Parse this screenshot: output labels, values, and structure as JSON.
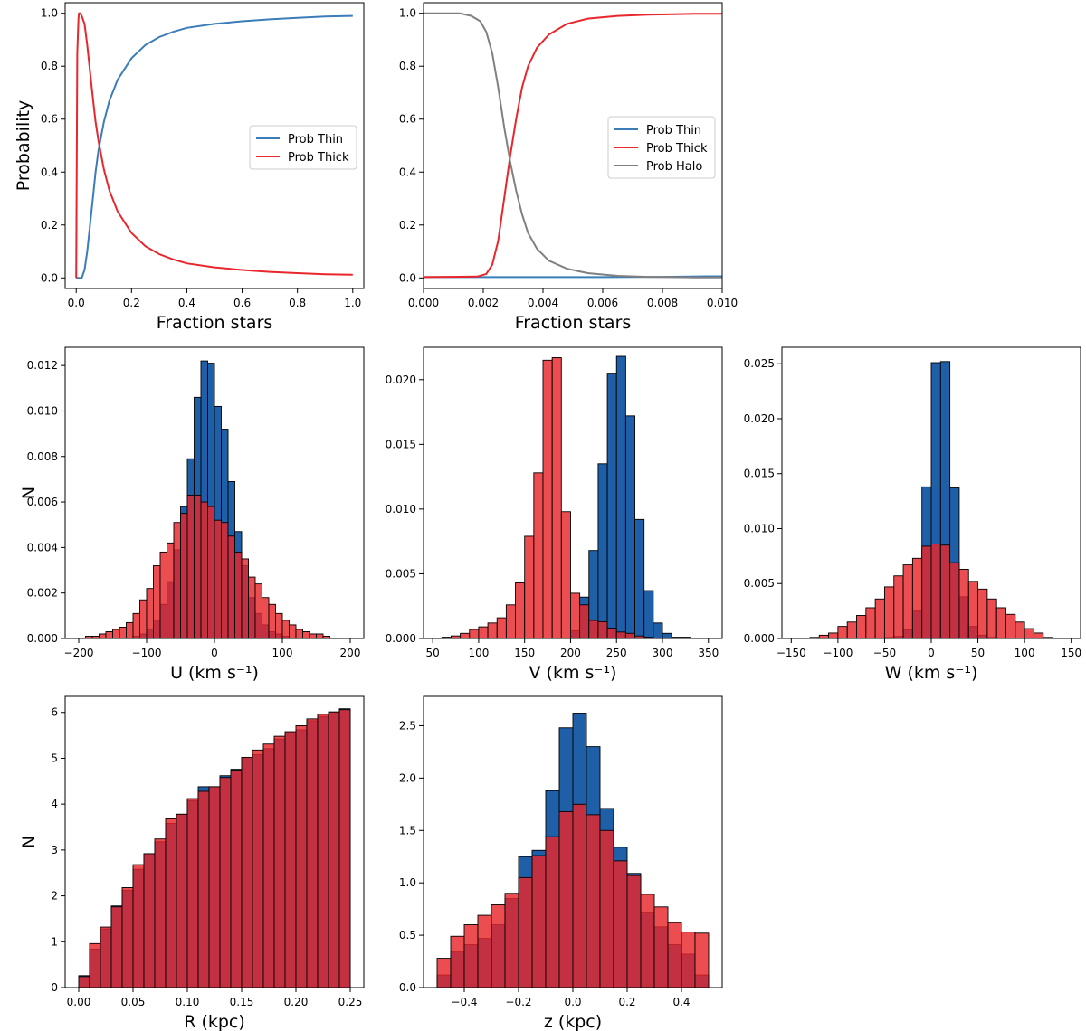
{
  "colors": {
    "thin": "#1f5fa8",
    "thick": "#e8262b",
    "halo": "#808080",
    "overlap": "#b0283a",
    "thinLine": "#3a7db8",
    "thickLine": "#e8262b"
  },
  "chart_data": [
    {
      "id": "p1",
      "type": "line",
      "xlabel": "Fraction stars",
      "ylabel": "Probability",
      "xlim": [
        -0.04,
        1.04
      ],
      "ylim": [
        -0.04,
        1.04
      ],
      "xticks": [
        "0.0",
        "0.2",
        "0.4",
        "0.6",
        "0.8",
        "1.0"
      ],
      "yticks": [
        "0.0",
        "0.2",
        "0.4",
        "0.6",
        "0.8",
        "1.0"
      ],
      "legend_position": "center-right",
      "series": [
        {
          "name": "Prob Thin",
          "color": "thinLine",
          "x": [
            0,
            0.02,
            0.03,
            0.04,
            0.05,
            0.06,
            0.07,
            0.08,
            0.1,
            0.12,
            0.15,
            0.2,
            0.25,
            0.3,
            0.35,
            0.4,
            0.5,
            0.6,
            0.7,
            0.8,
            0.9,
            1.0
          ],
          "y": [
            0.0,
            0.0,
            0.03,
            0.1,
            0.2,
            0.3,
            0.4,
            0.48,
            0.59,
            0.67,
            0.75,
            0.83,
            0.88,
            0.91,
            0.93,
            0.945,
            0.96,
            0.97,
            0.977,
            0.983,
            0.988,
            0.99
          ]
        },
        {
          "name": "Prob Thick",
          "color": "thickLine",
          "x": [
            0,
            0.004,
            0.008,
            0.01,
            0.015,
            0.02,
            0.03,
            0.04,
            0.05,
            0.06,
            0.07,
            0.08,
            0.1,
            0.12,
            0.15,
            0.2,
            0.25,
            0.3,
            0.35,
            0.4,
            0.5,
            0.6,
            0.7,
            0.8,
            0.9,
            1.0
          ],
          "y": [
            0.0,
            0.85,
            0.98,
            1.0,
            1.0,
            0.99,
            0.96,
            0.88,
            0.78,
            0.68,
            0.59,
            0.52,
            0.41,
            0.33,
            0.25,
            0.17,
            0.12,
            0.09,
            0.07,
            0.055,
            0.04,
            0.03,
            0.023,
            0.018,
            0.014,
            0.012
          ]
        }
      ]
    },
    {
      "id": "p2",
      "type": "line",
      "xlabel": "Fraction stars",
      "ylabel": "",
      "xlim": [
        0,
        0.01
      ],
      "ylim": [
        -0.04,
        1.04
      ],
      "xticks": [
        "0.000",
        "0.002",
        "0.004",
        "0.006",
        "0.008",
        "0.010"
      ],
      "yticks": [
        "0.0",
        "0.2",
        "0.4",
        "0.6",
        "0.8",
        "1.0"
      ],
      "legend_position": "center-right",
      "series": [
        {
          "name": "Prob Thin",
          "color": "thinLine",
          "x": [
            0,
            0.002,
            0.004,
            0.006,
            0.008,
            0.0095,
            0.01
          ],
          "y": [
            0.003,
            0.003,
            0.003,
            0.003,
            0.004,
            0.006,
            0.006
          ]
        },
        {
          "name": "Prob Thick",
          "color": "thickLine",
          "x": [
            0,
            0.0018,
            0.0021,
            0.0023,
            0.0025,
            0.0027,
            0.0029,
            0.0031,
            0.0033,
            0.0035,
            0.0038,
            0.0042,
            0.0048,
            0.0055,
            0.0065,
            0.0075,
            0.009,
            0.01
          ],
          "y": [
            0.003,
            0.005,
            0.015,
            0.05,
            0.14,
            0.3,
            0.46,
            0.6,
            0.72,
            0.8,
            0.87,
            0.92,
            0.96,
            0.98,
            0.99,
            0.995,
            0.998,
            0.998
          ]
        },
        {
          "name": "Prob Halo",
          "color": "halo",
          "x": [
            0,
            0.0012,
            0.0016,
            0.0019,
            0.0021,
            0.0023,
            0.0025,
            0.0027,
            0.0029,
            0.0031,
            0.0033,
            0.0035,
            0.0038,
            0.0042,
            0.0048,
            0.0055,
            0.0065,
            0.0075,
            0.009,
            0.01
          ],
          "y": [
            1.0,
            1.0,
            0.99,
            0.97,
            0.93,
            0.85,
            0.72,
            0.57,
            0.44,
            0.33,
            0.24,
            0.17,
            0.11,
            0.065,
            0.035,
            0.018,
            0.008,
            0.004,
            0.002,
            0.002
          ]
        }
      ]
    },
    {
      "id": "p3",
      "type": "bar",
      "xlabel": "U (km s⁻¹)",
      "ylabel": "N",
      "xlim": [
        -220,
        220
      ],
      "ylim": [
        0,
        0.0128
      ],
      "xticks": [
        "−200",
        "−100",
        "0",
        "100",
        "200"
      ],
      "yticks": [
        "0.000",
        "0.002",
        "0.004",
        "0.006",
        "0.008",
        "0.010",
        "0.012"
      ],
      "bin_start": -200,
      "bin_width": 10,
      "series": [
        {
          "name": "Thin",
          "color": "thin",
          "values": [
            0,
            0,
            0,
            0,
            0,
            0,
            0,
            0,
            0.0001,
            0.0002,
            0.0004,
            0.0008,
            0.0015,
            0.0025,
            0.0039,
            0.0058,
            0.0079,
            0.0106,
            0.0122,
            0.0121,
            0.0102,
            0.0092,
            0.0069,
            0.0047,
            0.0032,
            0.0018,
            0.0011,
            0.0006,
            0.0003,
            0.0002,
            0.0001,
            0,
            0,
            0,
            0,
            0,
            0,
            0,
            0,
            0
          ]
        },
        {
          "name": "Thick",
          "color": "thick",
          "values": [
            0,
            0.0001,
            0.0001,
            0.0002,
            0.0003,
            0.0004,
            0.0005,
            0.0007,
            0.0011,
            0.0017,
            0.0022,
            0.0032,
            0.0038,
            0.0042,
            0.0051,
            0.0055,
            0.0063,
            0.0063,
            0.006,
            0.0058,
            0.0052,
            0.0051,
            0.0045,
            0.0038,
            0.0035,
            0.0027,
            0.0024,
            0.0018,
            0.0015,
            0.0011,
            0.0008,
            0.0006,
            0.0004,
            0.0003,
            0.0002,
            0.0002,
            0.0001,
            0,
            0,
            0
          ]
        }
      ]
    },
    {
      "id": "p4",
      "type": "bar",
      "xlabel": "V (km s⁻¹)",
      "ylabel": "",
      "xlim": [
        40,
        365
      ],
      "ylim": [
        0,
        0.0225
      ],
      "xticks": [
        "50",
        "100",
        "150",
        "200",
        "250",
        "300",
        "350"
      ],
      "yticks": [
        "0.000",
        "0.005",
        "0.010",
        "0.015",
        "0.020"
      ],
      "bin_start": 50,
      "bin_width": 10,
      "series": [
        {
          "name": "Thin",
          "color": "thin",
          "values": [
            0,
            0,
            0,
            0,
            0,
            0,
            0,
            0,
            0,
            0,
            0,
            0,
            0,
            0,
            0,
            0.0006,
            0.0032,
            0.0068,
            0.0135,
            0.0205,
            0.0218,
            0.0172,
            0.0092,
            0.0037,
            0.0012,
            0.0004,
            0.0001,
            0.0001
          ]
        },
        {
          "name": "Thick",
          "color": "thick",
          "values": [
            0,
            0.0001,
            0.0002,
            0.0004,
            0.0007,
            0.0009,
            0.0012,
            0.0016,
            0.0026,
            0.0043,
            0.0079,
            0.0128,
            0.0215,
            0.0217,
            0.0098,
            0.0035,
            0.0026,
            0.0014,
            0.0013,
            0.0008,
            0.0005,
            0.0004,
            0.0002,
            0.0001,
            0,
            0,
            0,
            0
          ]
        }
      ]
    },
    {
      "id": "p5",
      "type": "bar",
      "xlabel": "W (km s⁻¹)",
      "ylabel": "",
      "xlim": [
        -160,
        160
      ],
      "ylim": [
        0,
        0.0265
      ],
      "xticks": [
        "−150",
        "−100",
        "−50",
        "0",
        "50",
        "100",
        "150"
      ],
      "yticks": [
        "0.000",
        "0.005",
        "0.010",
        "0.015",
        "0.020",
        "0.025"
      ],
      "bin_start": -130,
      "bin_width": 10,
      "series": [
        {
          "name": "Thin",
          "color": "thin",
          "values": [
            0,
            0,
            0,
            0,
            0,
            0,
            0,
            0,
            0.0001,
            0.0002,
            0.0008,
            0.0025,
            0.0138,
            0.0251,
            0.0252,
            0.0137,
            0.0038,
            0.0011,
            0.0003,
            0.0001,
            0,
            0,
            0,
            0,
            0,
            0
          ]
        },
        {
          "name": "Thick",
          "color": "thick",
          "values": [
            0.0001,
            0.0003,
            0.0005,
            0.0011,
            0.0015,
            0.0021,
            0.0028,
            0.0036,
            0.0047,
            0.0057,
            0.0067,
            0.0073,
            0.0084,
            0.0086,
            0.0085,
            0.0069,
            0.0063,
            0.0052,
            0.0045,
            0.0036,
            0.0028,
            0.0022,
            0.0015,
            0.0009,
            0.0005,
            0.0001
          ]
        }
      ]
    },
    {
      "id": "p6",
      "type": "bar",
      "xlabel": "R (kpc)",
      "ylabel": "N",
      "xlim": [
        -0.0125,
        0.2625
      ],
      "ylim": [
        0,
        6.35
      ],
      "xticks": [
        "0.00",
        "0.05",
        "0.10",
        "0.15",
        "0.20",
        "0.25"
      ],
      "yticks": [
        "0",
        "1",
        "2",
        "3",
        "4",
        "5",
        "6"
      ],
      "bin_start": 0,
      "bin_width": 0.01,
      "series": [
        {
          "name": "Thin",
          "color": "thin",
          "values": [
            0.26,
            0.84,
            1.28,
            1.78,
            2.12,
            2.58,
            2.92,
            3.18,
            3.58,
            3.78,
            4.08,
            4.38,
            4.38,
            4.62,
            4.76,
            5.02,
            5.08,
            5.21,
            5.42,
            5.56,
            5.62,
            5.82,
            5.91,
            6.01,
            6.08
          ]
        },
        {
          "name": "Thick",
          "color": "thick",
          "values": [
            0.24,
            0.96,
            1.32,
            1.76,
            2.18,
            2.68,
            2.92,
            3.24,
            3.68,
            3.78,
            4.12,
            4.28,
            4.38,
            4.58,
            4.74,
            5.02,
            5.18,
            5.31,
            5.48,
            5.58,
            5.71,
            5.86,
            5.96,
            6.01,
            6.06
          ]
        }
      ]
    },
    {
      "id": "p7",
      "type": "bar",
      "xlabel": "z (kpc)",
      "ylabel": "",
      "xlim": [
        -0.55,
        0.55
      ],
      "ylim": [
        0,
        2.78
      ],
      "xticks": [
        "−0.4",
        "−0.2",
        "0.0",
        "0.2",
        "0.4"
      ],
      "yticks": [
        "0.0",
        "0.5",
        "1.0",
        "1.5",
        "2.0",
        "2.5"
      ],
      "bin_start": -0.5,
      "bin_width": 0.05,
      "series": [
        {
          "name": "Thin",
          "color": "thin",
          "values": [
            0.12,
            0.34,
            0.41,
            0.47,
            0.6,
            0.85,
            1.25,
            1.31,
            1.88,
            2.48,
            2.62,
            2.3,
            1.71,
            1.34,
            1.09,
            0.72,
            0.58,
            0.41,
            0.32,
            0.12
          ]
        },
        {
          "name": "Thick",
          "color": "thick",
          "values": [
            0.28,
            0.49,
            0.6,
            0.69,
            0.79,
            0.9,
            1.05,
            1.26,
            1.44,
            1.68,
            1.75,
            1.65,
            1.5,
            1.21,
            1.07,
            0.89,
            0.77,
            0.62,
            0.53,
            0.52
          ]
        }
      ]
    }
  ],
  "legends": {
    "p1": [
      "Prob Thin",
      "Prob Thick"
    ],
    "p2": [
      "Prob Thin",
      "Prob Thick",
      "Prob Halo"
    ]
  }
}
